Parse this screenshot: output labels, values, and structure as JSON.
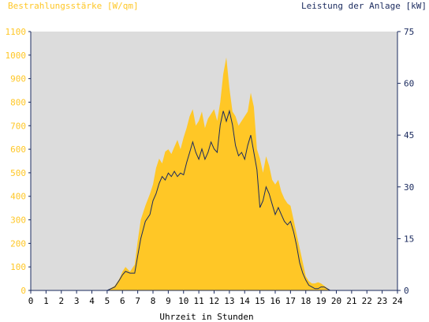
{
  "chart_data": {
    "type": "area",
    "left_axis_title": "Bestrahlungsstärke [W/qm]",
    "right_axis_title": "Leistung der Anlage [kW]",
    "xlabel": "Uhrzeit in Stunden",
    "xlim": [
      0,
      24
    ],
    "x_ticks": [
      "0",
      "1",
      "2",
      "3",
      "4",
      "5",
      "6",
      "7",
      "8",
      "9",
      "10",
      "11",
      "12",
      "13",
      "14",
      "15",
      "16",
      "17",
      "18",
      "19",
      "20",
      "21",
      "22",
      "23",
      "24"
    ],
    "left_axis": {
      "ylim": [
        0,
        1100
      ],
      "ticks": [
        "0",
        "100",
        "200",
        "300",
        "400",
        "500",
        "600",
        "700",
        "800",
        "900",
        "1000",
        "1100"
      ]
    },
    "right_axis": {
      "ylim": [
        0,
        75
      ],
      "ticks": [
        "0",
        "15",
        "30",
        "45",
        "60",
        "75"
      ]
    },
    "grid": false,
    "colors": {
      "plot_background": "#dcdcdc",
      "irradiance": "#ffc726",
      "power": "#1a2a5e",
      "left_axis": "#ffc726",
      "right_axis": "#1a2a5e",
      "axis_line": "#1a2a5e"
    },
    "series": [
      {
        "axis": "left",
        "style": "area",
        "x": [
          0,
          5,
          5.5,
          5.8,
          6,
          6.2,
          6.5,
          6.8,
          7,
          7.2,
          7.5,
          7.8,
          8,
          8.2,
          8.4,
          8.6,
          8.8,
          9,
          9.2,
          9.4,
          9.6,
          9.8,
          10,
          10.2,
          10.4,
          10.6,
          10.8,
          11,
          11.2,
          11.4,
          11.6,
          11.8,
          12,
          12.2,
          12.4,
          12.6,
          12.8,
          13,
          13.2,
          13.4,
          13.6,
          13.8,
          14,
          14.2,
          14.4,
          14.6,
          14.8,
          15,
          15.2,
          15.4,
          15.6,
          15.8,
          16,
          16.2,
          16.4,
          16.6,
          16.8,
          17,
          17.2,
          17.4,
          17.6,
          17.8,
          18,
          18.2,
          18.4,
          18.6,
          18.8,
          19,
          19.2,
          19.4,
          19.6,
          19.8,
          20,
          24
        ],
        "values": [
          0,
          0,
          20,
          50,
          80,
          100,
          80,
          110,
          210,
          300,
          360,
          410,
          450,
          520,
          560,
          540,
          590,
          600,
          580,
          610,
          640,
          600,
          650,
          690,
          740,
          770,
          700,
          720,
          760,
          690,
          730,
          750,
          770,
          720,
          800,
          920,
          990,
          860,
          760,
          740,
          700,
          720,
          740,
          760,
          840,
          780,
          600,
          560,
          500,
          570,
          530,
          470,
          450,
          470,
          420,
          390,
          370,
          360,
          300,
          240,
          180,
          120,
          60,
          40,
          30,
          30,
          35,
          30,
          20,
          10,
          0,
          0,
          0,
          0
        ]
      },
      {
        "axis": "right",
        "style": "line",
        "x": [
          0,
          5,
          5.5,
          5.8,
          6,
          6.2,
          6.5,
          6.8,
          7,
          7.2,
          7.5,
          7.8,
          8,
          8.2,
          8.4,
          8.6,
          8.8,
          9,
          9.2,
          9.4,
          9.6,
          9.8,
          10,
          10.2,
          10.4,
          10.6,
          10.8,
          11,
          11.2,
          11.4,
          11.6,
          11.8,
          12,
          12.2,
          12.4,
          12.6,
          12.8,
          13,
          13.2,
          13.4,
          13.6,
          13.8,
          14,
          14.2,
          14.4,
          14.6,
          14.8,
          15,
          15.2,
          15.4,
          15.6,
          15.8,
          16,
          16.2,
          16.4,
          16.6,
          16.8,
          17,
          17.2,
          17.4,
          17.6,
          17.8,
          18,
          18.2,
          18.4,
          18.6,
          18.8,
          19,
          19.2,
          19.4,
          19.6,
          19.8,
          20,
          24
        ],
        "values": [
          0,
          0,
          1,
          3,
          4.5,
          5.5,
          5,
          5,
          10,
          15,
          20,
          22,
          26,
          28,
          31,
          33,
          32,
          34,
          33,
          34.5,
          33,
          34,
          33.5,
          37,
          40,
          43,
          40,
          38,
          41,
          38,
          40,
          43,
          41,
          40,
          48,
          52,
          49,
          52,
          48,
          42,
          39,
          40,
          38,
          42,
          45,
          40,
          35,
          24,
          26,
          30,
          28,
          25,
          22,
          24,
          22,
          20,
          19,
          20,
          17,
          13,
          8,
          5,
          3,
          1.5,
          1,
          0.5,
          0.5,
          1,
          1,
          0.5,
          0,
          0,
          0,
          0
        ]
      }
    ]
  }
}
